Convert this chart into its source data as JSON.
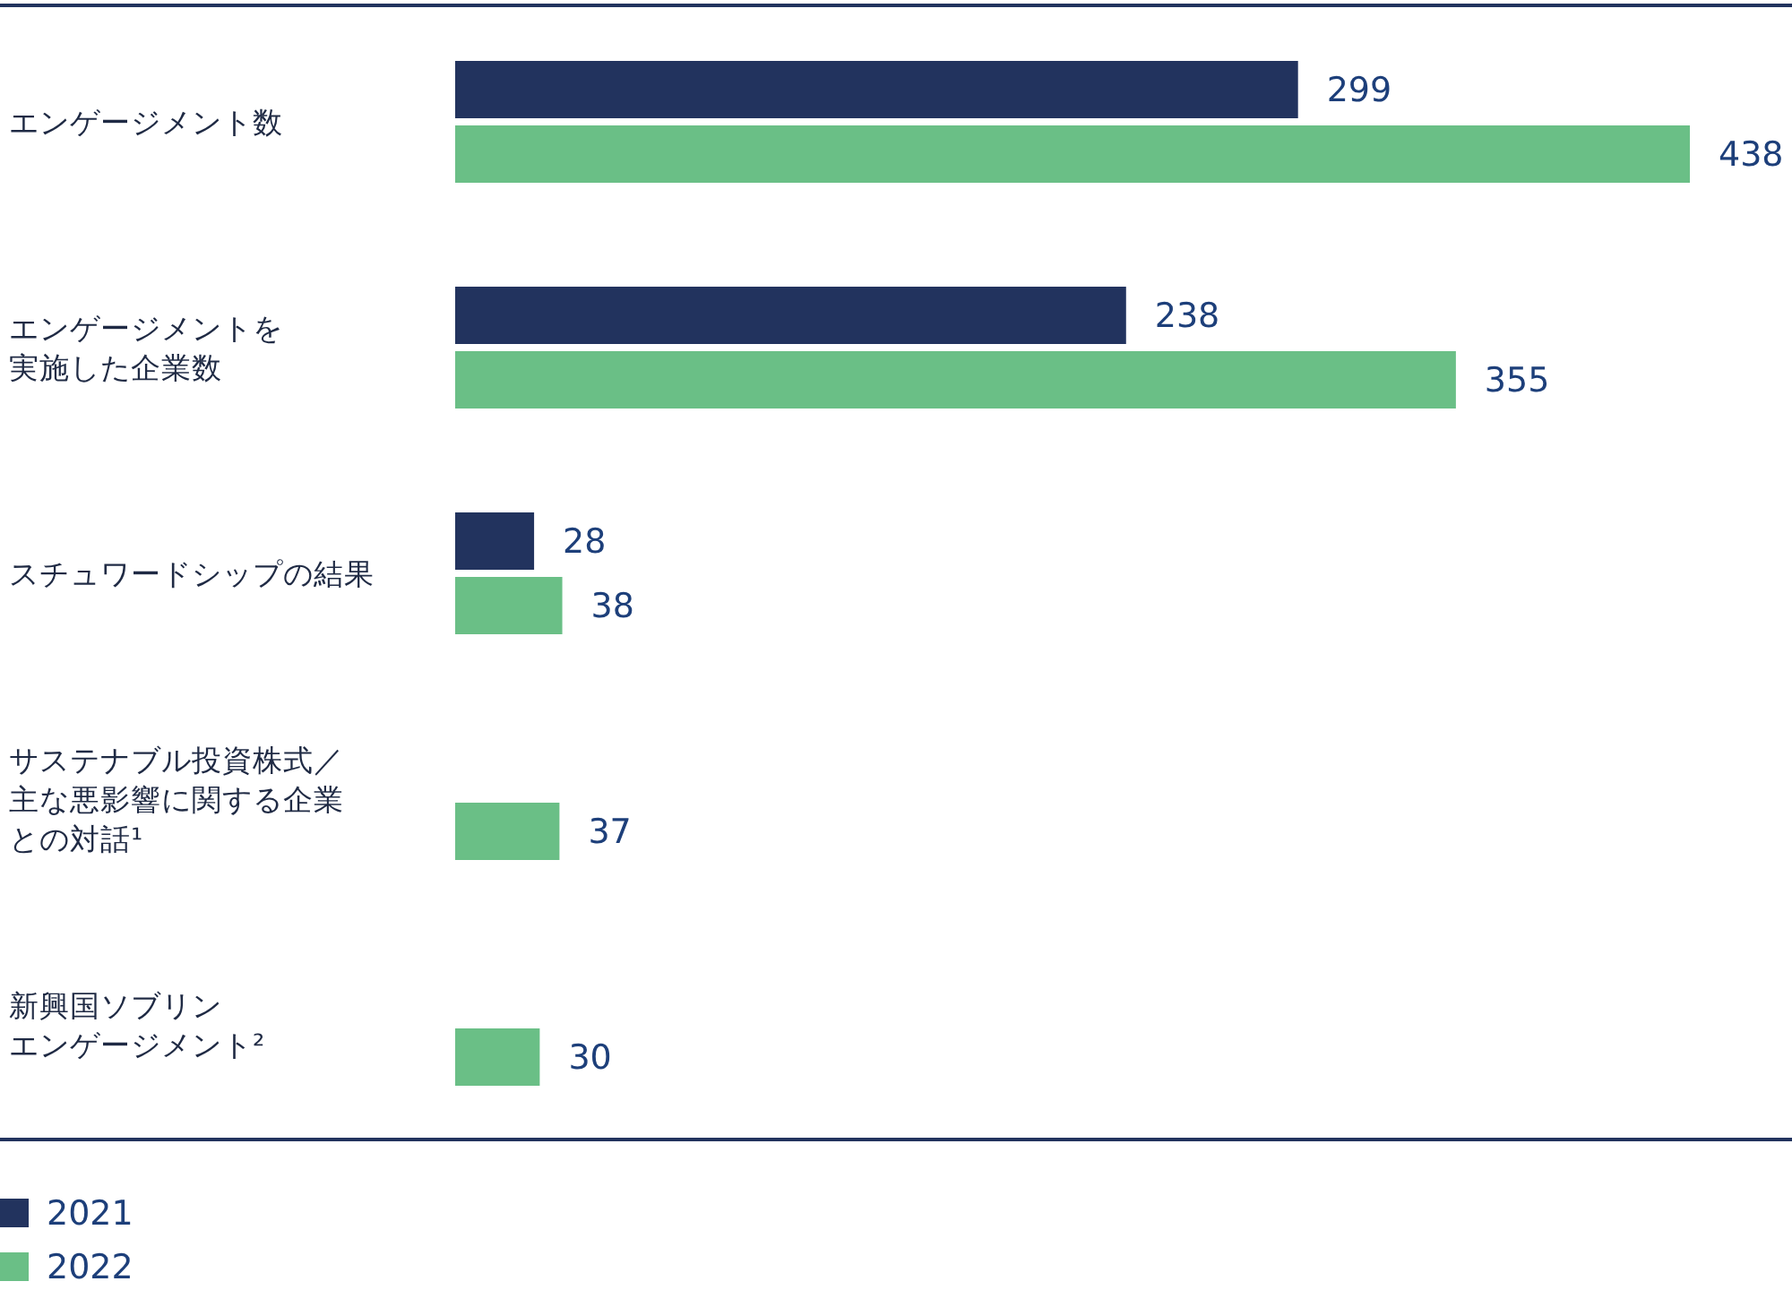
{
  "chart_data": {
    "type": "bar",
    "orientation": "horizontal",
    "categories": [
      "エンゲージメント数",
      "エンゲージメントを実施した企業数",
      "スチュワードシップの結果",
      "サステナブル投資株式／主な悪影響に関する企業との対話¹",
      "新興国ソブリンエンゲージメント²"
    ],
    "series": [
      {
        "name": "2021",
        "color": "#22335e",
        "values": [
          299,
          238,
          28,
          null,
          null
        ]
      },
      {
        "name": "2022",
        "color": "#6abf86",
        "values": [
          438,
          355,
          38,
          37,
          30
        ]
      }
    ],
    "data_labels": true,
    "legend": "bottom left"
  }
}
